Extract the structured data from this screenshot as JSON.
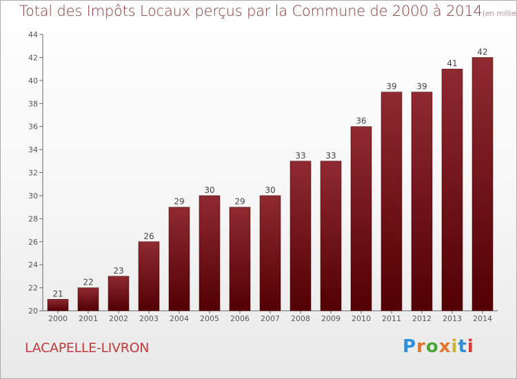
{
  "chart_data": {
    "type": "bar",
    "title": "Total des Impôts Locaux perçus par la Commune de 2000 à 2014",
    "title_unit": "(en milliers d'€)",
    "categories": [
      "2000",
      "2001",
      "2002",
      "2003",
      "2004",
      "2005",
      "2006",
      "2007",
      "2008",
      "2009",
      "2010",
      "2011",
      "2012",
      "2013",
      "2014"
    ],
    "values": [
      21,
      22,
      23,
      26,
      29,
      30,
      29,
      30,
      33,
      33,
      36,
      39,
      39,
      41,
      42
    ],
    "ylim": [
      20,
      44
    ],
    "yticks": [
      20,
      22,
      24,
      26,
      28,
      30,
      32,
      34,
      36,
      38,
      40,
      42,
      44
    ],
    "xlabel": "",
    "ylabel": "",
    "grid": false,
    "legend": "none",
    "bar_color": "#7a1a1f"
  },
  "commune_name": "LACAPELLE-LIVRON",
  "logo": {
    "letters": [
      "P",
      "r",
      "o",
      "x",
      "i",
      "t",
      "i"
    ]
  }
}
